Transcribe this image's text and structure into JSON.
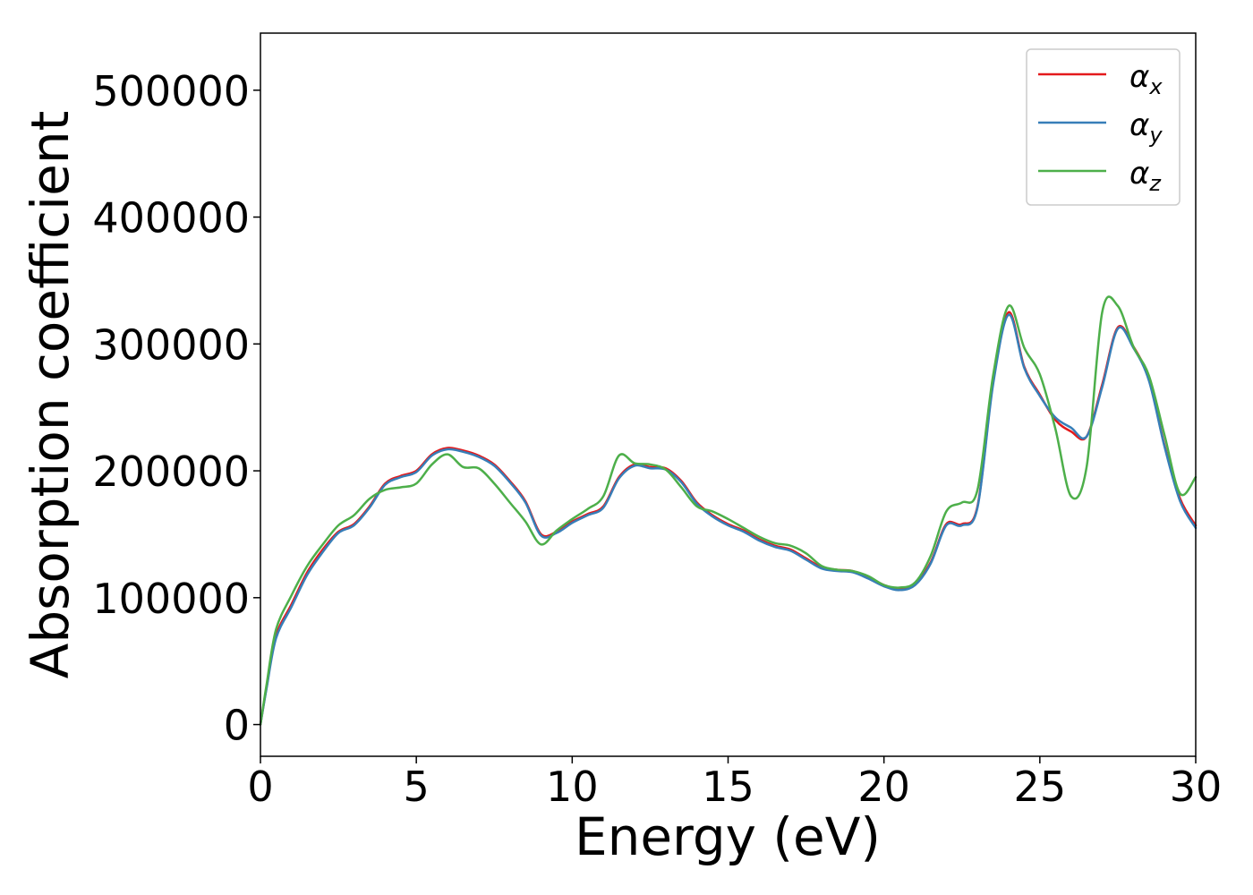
{
  "chart_data": {
    "type": "line",
    "xlabel": "Energy (eV)",
    "ylabel": "Absorption coefficient",
    "xlim": [
      0,
      30
    ],
    "ylim": [
      -25000,
      545000
    ],
    "xticks": [
      "0",
      "5",
      "10",
      "15",
      "20",
      "25",
      "30"
    ],
    "yticks": [
      "0",
      "100000",
      "200000",
      "300000",
      "400000",
      "500000"
    ],
    "grid": false,
    "legend_position": "top-right",
    "series": [
      {
        "name": "α_x",
        "legend_symbol": "α",
        "legend_subscript": "x",
        "color": "#e41a1c",
        "x": [
          0,
          0.2,
          0.5,
          1.0,
          1.5,
          2.0,
          2.5,
          3.0,
          3.5,
          4.0,
          4.5,
          5.0,
          5.5,
          6.0,
          6.5,
          7.0,
          7.5,
          8.0,
          8.5,
          9.0,
          9.5,
          10.0,
          10.5,
          11.0,
          11.5,
          12.0,
          12.5,
          13.0,
          13.5,
          14.0,
          14.5,
          15.0,
          15.5,
          16.0,
          16.5,
          17.0,
          17.5,
          18.0,
          18.5,
          19.0,
          19.5,
          20.0,
          20.5,
          21.0,
          21.5,
          22.0,
          22.5,
          23.0,
          23.5,
          24.0,
          24.5,
          25.0,
          25.5,
          26.0,
          26.5,
          27.0,
          27.5,
          28.0,
          28.5,
          29.0,
          29.5,
          30.0
        ],
        "y": [
          0,
          30000,
          70000,
          95000,
          120000,
          138000,
          152000,
          158000,
          172000,
          190000,
          196000,
          200000,
          213000,
          218000,
          216000,
          212000,
          205000,
          192000,
          176000,
          150000,
          152000,
          160000,
          166000,
          172000,
          195000,
          205000,
          203000,
          202000,
          192000,
          175000,
          165000,
          158000,
          153000,
          146000,
          141000,
          138000,
          131000,
          124000,
          122000,
          121000,
          116000,
          110000,
          107000,
          111000,
          128000,
          158000,
          158000,
          172000,
          270000,
          325000,
          282000,
          260000,
          240000,
          231000,
          227000,
          268000,
          313000,
          298000,
          272000,
          220000,
          178000,
          157000
        ]
      },
      {
        "name": "α_y",
        "legend_symbol": "α",
        "legend_subscript": "y",
        "color": "#377eb8",
        "x": [
          0,
          0.2,
          0.5,
          1.0,
          1.5,
          2.0,
          2.5,
          3.0,
          3.5,
          4.0,
          4.5,
          5.0,
          5.5,
          6.0,
          6.5,
          7.0,
          7.5,
          8.0,
          8.5,
          9.0,
          9.5,
          10.0,
          10.5,
          11.0,
          11.5,
          12.0,
          12.5,
          13.0,
          13.5,
          14.0,
          14.5,
          15.0,
          15.5,
          16.0,
          16.5,
          17.0,
          17.5,
          18.0,
          18.5,
          19.0,
          19.5,
          20.0,
          20.5,
          21.0,
          21.5,
          22.0,
          22.5,
          23.0,
          23.5,
          24.0,
          24.5,
          25.0,
          25.5,
          26.0,
          26.5,
          27.0,
          27.5,
          28.0,
          28.5,
          29.0,
          29.5,
          30.0
        ],
        "y": [
          0,
          29000,
          68000,
          93000,
          118000,
          136000,
          151000,
          157000,
          171000,
          189000,
          195000,
          199000,
          212000,
          217000,
          215000,
          211000,
          204000,
          191000,
          175000,
          149000,
          151000,
          159000,
          165000,
          171000,
          194000,
          204000,
          202000,
          201000,
          191000,
          174000,
          164000,
          157000,
          152000,
          145000,
          140000,
          137000,
          130000,
          123000,
          121000,
          120000,
          115000,
          109000,
          106000,
          110000,
          127000,
          157000,
          157000,
          171000,
          268000,
          323000,
          281000,
          259000,
          242000,
          234000,
          227000,
          266000,
          312000,
          297000,
          271000,
          219000,
          176000,
          155000
        ]
      },
      {
        "name": "α_z",
        "legend_symbol": "α",
        "legend_subscript": "z",
        "color": "#4daf4a",
        "x": [
          0,
          0.2,
          0.5,
          1.0,
          1.5,
          2.0,
          2.5,
          3.0,
          3.5,
          4.0,
          4.5,
          5.0,
          5.5,
          6.0,
          6.5,
          7.0,
          7.5,
          8.0,
          8.5,
          9.0,
          9.5,
          10.0,
          10.5,
          11.0,
          11.5,
          12.0,
          12.5,
          13.0,
          13.5,
          14.0,
          14.5,
          15.0,
          15.5,
          16.0,
          16.5,
          17.0,
          17.5,
          18.0,
          18.5,
          19.0,
          19.5,
          20.0,
          20.5,
          21.0,
          21.5,
          22.0,
          22.5,
          23.0,
          23.5,
          24.0,
          24.5,
          25.0,
          25.5,
          26.0,
          26.5,
          27.0,
          27.5,
          28.0,
          28.5,
          29.0,
          29.5,
          30.0
        ],
        "y": [
          0,
          32000,
          75000,
          102000,
          125000,
          142000,
          157000,
          165000,
          178000,
          185000,
          187000,
          190000,
          205000,
          213000,
          203000,
          202000,
          190000,
          175000,
          160000,
          142000,
          153000,
          162000,
          170000,
          180000,
          212000,
          206000,
          205000,
          201000,
          187000,
          172000,
          168000,
          162000,
          155000,
          148000,
          143000,
          141000,
          135000,
          125000,
          122000,
          121000,
          117000,
          110000,
          108000,
          112000,
          133000,
          168000,
          175000,
          185000,
          275000,
          330000,
          297000,
          276000,
          233000,
          180000,
          203000,
          325000,
          330000,
          298000,
          275000,
          228000,
          182000,
          195000
        ]
      }
    ]
  }
}
